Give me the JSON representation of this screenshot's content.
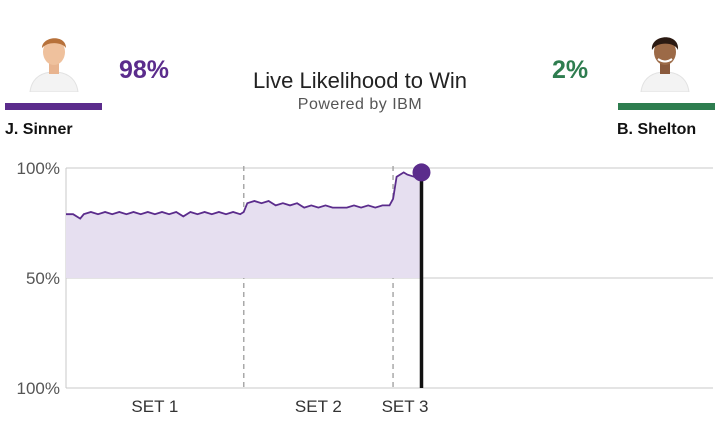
{
  "header": {
    "title": "Live Likelihood to Win",
    "subtitle": "Powered by IBM"
  },
  "players": {
    "left": {
      "name": "J. Sinner",
      "percent": "98%",
      "color": "#5b2c8c",
      "avatar_icon": "player-avatar-icon"
    },
    "right": {
      "name": "B. Shelton",
      "percent": "2%",
      "color": "#2e7d4f",
      "avatar_icon": "player-avatar-icon"
    }
  },
  "chart_data": {
    "type": "area",
    "title": "Live Likelihood to Win",
    "y_tick_labels": [
      "100%",
      "50%",
      "100%"
    ],
    "ylim": [
      0,
      100
    ],
    "grid": true,
    "x_labels": [
      "SET 1",
      "SET 2",
      "SET 3"
    ],
    "set_boundaries": [
      50,
      92
    ],
    "x_range": [
      0,
      182
    ],
    "current_x": 100,
    "current_value": 98,
    "series": [
      {
        "color": "#5b2c8c",
        "points": [
          [
            0,
            79
          ],
          [
            2,
            79
          ],
          [
            4,
            77
          ],
          [
            5,
            79
          ],
          [
            7,
            80
          ],
          [
            9,
            79
          ],
          [
            11,
            80
          ],
          [
            13,
            79
          ],
          [
            15,
            80
          ],
          [
            17,
            79
          ],
          [
            19,
            80
          ],
          [
            21,
            79
          ],
          [
            23,
            80
          ],
          [
            25,
            79
          ],
          [
            27,
            80
          ],
          [
            29,
            79
          ],
          [
            31,
            80
          ],
          [
            33,
            78
          ],
          [
            35,
            80
          ],
          [
            37,
            79
          ],
          [
            39,
            80
          ],
          [
            41,
            79
          ],
          [
            43,
            80
          ],
          [
            45,
            79
          ],
          [
            47,
            80
          ],
          [
            49,
            79
          ],
          [
            50,
            80
          ],
          [
            51,
            84
          ],
          [
            53,
            85
          ],
          [
            55,
            84
          ],
          [
            57,
            85
          ],
          [
            59,
            83
          ],
          [
            61,
            84
          ],
          [
            63,
            83
          ],
          [
            65,
            84
          ],
          [
            67,
            82
          ],
          [
            69,
            83
          ],
          [
            71,
            82
          ],
          [
            73,
            83
          ],
          [
            75,
            82
          ],
          [
            77,
            82
          ],
          [
            79,
            82
          ],
          [
            81,
            83
          ],
          [
            83,
            82
          ],
          [
            85,
            83
          ],
          [
            87,
            82
          ],
          [
            89,
            83
          ],
          [
            91,
            83
          ],
          [
            92,
            86
          ],
          [
            93,
            96
          ],
          [
            95,
            98
          ],
          [
            96,
            97
          ],
          [
            98,
            96
          ],
          [
            99,
            99
          ],
          [
            100,
            98
          ]
        ]
      }
    ]
  }
}
